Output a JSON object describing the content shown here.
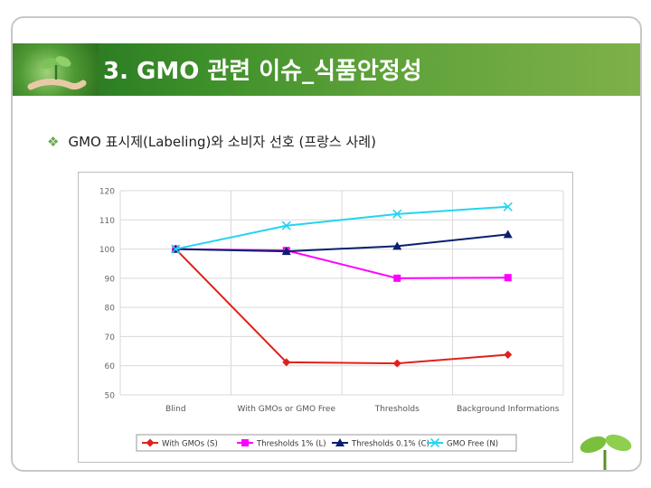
{
  "slide": {
    "title": "3. GMO 관련 이슈_식품안정성",
    "bullet": "GMO 표시제(Labeling)와 소비자 선호 (프랑스 사례)"
  },
  "chart_data": {
    "type": "line",
    "categories": [
      "Blind",
      "With GMOs or GMO Free",
      "Thresholds",
      "Background Informations"
    ],
    "ylim": [
      50,
      120
    ],
    "yticks": [
      "120",
      "110",
      "100",
      "90",
      "80",
      "70",
      "60",
      "50"
    ],
    "grid": true,
    "legend_position": "bottom",
    "series": [
      {
        "name": "With GMOs (S)",
        "values": [
          100,
          61.2,
          60.8,
          63.8
        ],
        "color": "#e0201c",
        "marker": "diamond"
      },
      {
        "name": "Thresholds 1% (L)",
        "values": [
          100,
          99.5,
          90,
          90.2
        ],
        "color": "#ff00ff",
        "marker": "square"
      },
      {
        "name": "Thresholds 0.1% (C)",
        "values": [
          100,
          99.2,
          101,
          105
        ],
        "color": "#0a1f6e",
        "marker": "triangle"
      },
      {
        "name": "GMO Free (N)",
        "values": [
          100,
          108,
          112,
          114.5
        ],
        "color": "#22d4f0",
        "marker": "x"
      }
    ]
  }
}
